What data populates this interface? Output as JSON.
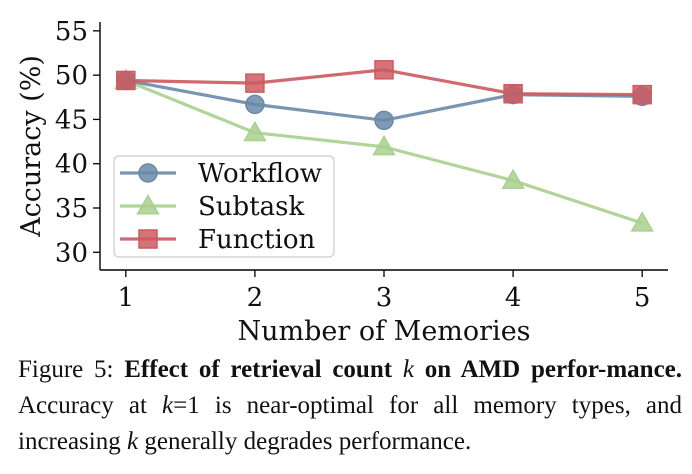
{
  "chart_data": {
    "type": "line",
    "xlabel": "Number of Memories",
    "ylabel": "Accuracy (%)",
    "x": [
      1,
      2,
      3,
      4,
      5
    ],
    "xlim": [
      0.8,
      5.2
    ],
    "ylim": [
      28,
      56
    ],
    "yticks": [
      30,
      35,
      40,
      45,
      50,
      55
    ],
    "grid": false,
    "legend_position": "lower-left",
    "series": [
      {
        "name": "Workflow",
        "marker": "circle",
        "color": "#6a8aa8",
        "values": [
          49.4,
          46.7,
          44.9,
          47.8,
          47.6
        ]
      },
      {
        "name": "Subtask",
        "marker": "triangle",
        "color": "#a9d08e",
        "values": [
          49.4,
          43.5,
          41.9,
          38.1,
          33.3
        ]
      },
      {
        "name": "Function",
        "marker": "square",
        "color": "#cc5a60",
        "values": [
          49.4,
          49.1,
          50.6,
          47.9,
          47.8
        ]
      }
    ]
  },
  "caption": {
    "prefix": "Figure 5:",
    "bold_part1": "Effect of retrieval count",
    "k_symbol": "k",
    "bold_part2": "on AMD perfor-mance.",
    "text_part1": "Accuracy at",
    "k_eq": "=1",
    "text_part2": "is near-optimal for all memory types, and increasing",
    "text_part3": "generally degrades performance."
  }
}
